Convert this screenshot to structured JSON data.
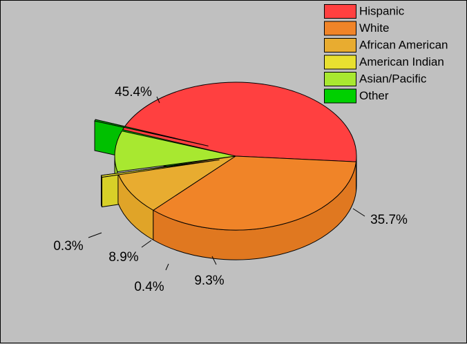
{
  "chart_data": {
    "type": "pie",
    "title": "",
    "legend_position": "top-right",
    "slices": [
      {
        "label": "Hispanic",
        "value": 45.4,
        "value_label": "45.4%",
        "color": "#ff4040",
        "side_color": "#e03838"
      },
      {
        "label": "White",
        "value": 35.7,
        "value_label": "35.7%",
        "color": "#f08428",
        "side_color": "#e07820"
      },
      {
        "label": "African American",
        "value": 9.3,
        "value_label": "9.3%",
        "color": "#e8ac30",
        "side_color": "#e0a428"
      },
      {
        "label": "American Indian",
        "value": 0.4,
        "value_label": "0.4%",
        "color": "#e8e030",
        "side_color": "#d8d028"
      },
      {
        "label": "Asian/Pacific",
        "value": 8.9,
        "value_label": "8.9%",
        "color": "#a8e830",
        "side_color": "#98d828"
      },
      {
        "label": "Other",
        "value": 0.3,
        "value_label": "0.3%",
        "color": "#00d000",
        "side_color": "#00c000"
      }
    ]
  }
}
